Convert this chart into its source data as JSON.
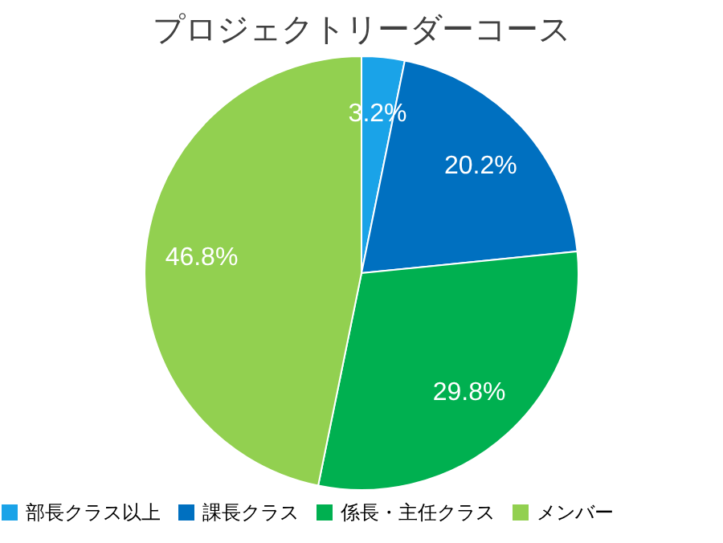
{
  "chart_data": {
    "type": "pie",
    "title": "プロジェクトリーダーコース",
    "categories": [
      "部長クラス以上",
      "課長クラス",
      "係長・主任クラス",
      "メンバー"
    ],
    "values": [
      3.2,
      20.2,
      29.8,
      46.8
    ],
    "value_labels": [
      "3.2%",
      "20.2%",
      "29.8%",
      "46.8%"
    ],
    "colors": [
      "#1aa3e8",
      "#0070c0",
      "#00b050",
      "#92d050"
    ],
    "legend": "bottom"
  }
}
